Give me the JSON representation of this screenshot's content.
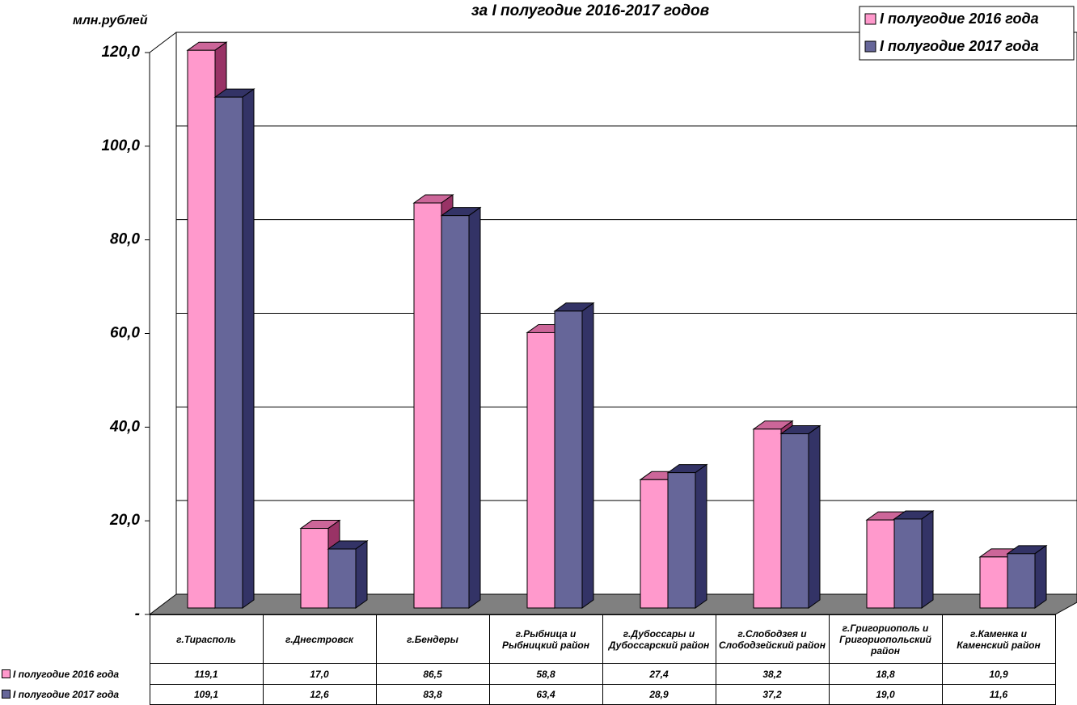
{
  "chart_data": {
    "type": "bar3d",
    "title": "за I полугодие 2016-2017 годов",
    "y_label": "млн.рублей",
    "categories": [
      "г.Тирасполь",
      "г.Днестровск",
      "г.Бендеры",
      "г.Рыбница и Рыбницкий район",
      "г.Дубоссары и Дубоссарский район",
      "г.Слободзея и Слободзейский район",
      "г.Григориополь и Григориопольский район",
      "г.Каменка и Каменский район"
    ],
    "series": [
      {
        "name": "I полугодие 2016 года",
        "color": "#ff99cc",
        "values": [
          119.1,
          17.0,
          86.5,
          58.8,
          27.4,
          38.2,
          18.8,
          10.9
        ],
        "value_labels": [
          "119,1",
          "17,0",
          "86,5",
          "58,8",
          "27,4",
          "38,2",
          "18,8",
          "10,9"
        ]
      },
      {
        "name": "I полугодие 2017 года",
        "color": "#666699",
        "values": [
          109.1,
          12.6,
          83.8,
          63.4,
          28.9,
          37.2,
          19.0,
          11.6
        ],
        "value_labels": [
          "109,1",
          "12,6",
          "83,8",
          "63,4",
          "28,9",
          "37,2",
          "19,0",
          "11,6"
        ]
      }
    ],
    "ylim": [
      0,
      120
    ],
    "yticks": [
      {
        "value": 0,
        "label": "-"
      },
      {
        "value": 20,
        "label": "20,0"
      },
      {
        "value": 40,
        "label": "40,0"
      },
      {
        "value": 60,
        "label": "60,0"
      },
      {
        "value": 80,
        "label": "80,0"
      },
      {
        "value": 100,
        "label": "100,0"
      },
      {
        "value": 120,
        "label": "120,0"
      }
    ],
    "grid": true,
    "legend": "top-right"
  }
}
